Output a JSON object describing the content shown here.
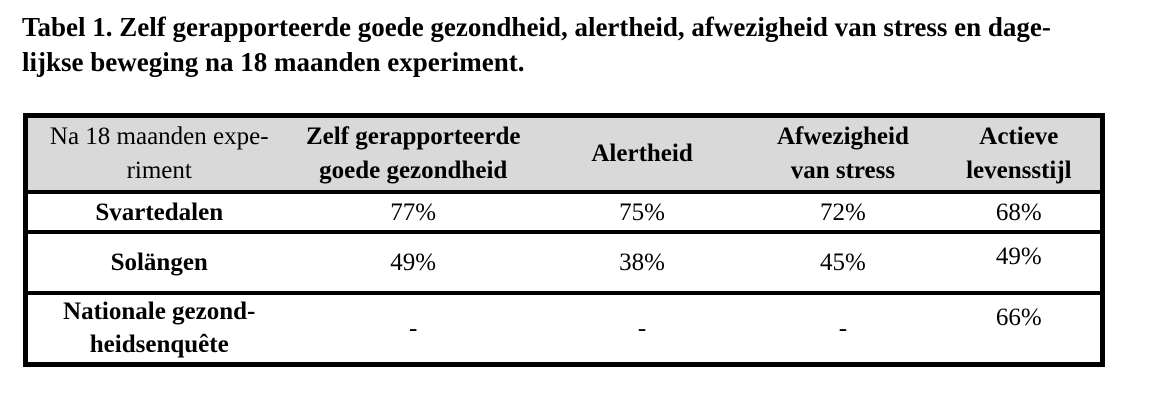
{
  "caption": {
    "text": "Tabel 1. Zelf gerapporteerde goede gezondheid, alertheid, afwezigheid van stress en dage-\nlijkse beweging na 18 maanden experiment."
  },
  "table": {
    "columns": [
      "Na 18 maanden expe-\nriment",
      "Zelf gerapporteerde\ngoede gezondheid",
      "Alertheid",
      "Afwezigheid\nvan stress",
      "Actieve\nlevensstijl"
    ],
    "rows": [
      {
        "label": "Svartedalen",
        "values": [
          "77%",
          "75%",
          "72%",
          "68%"
        ]
      },
      {
        "label": "Solängen",
        "values": [
          "49%",
          "38%",
          "45%",
          "49%"
        ]
      },
      {
        "label": "Nationale gezond-\nheidsenquête",
        "values": [
          "-",
          "-",
          "-",
          "66%"
        ]
      }
    ]
  },
  "colors": {
    "header_background": "#d9d9d9",
    "border": "#000000",
    "text": "#000000",
    "page_background": "#ffffff"
  },
  "chart_data": {
    "type": "table",
    "title": "Tabel 1. Zelf gerapporteerde goede gezondheid, alertheid, afwezigheid van stress en dagelijkse beweging na 18 maanden experiment.",
    "columns": [
      "Na 18 maanden experiment",
      "Zelf gerapporteerde goede gezondheid",
      "Alertheid",
      "Afwezigheid van stress",
      "Actieve levensstijl"
    ],
    "rows": [
      [
        "Svartedalen",
        "77%",
        "75%",
        "72%",
        "68%"
      ],
      [
        "Solängen",
        "49%",
        "38%",
        "45%",
        "49%"
      ],
      [
        "Nationale gezondheidsenquête",
        "-",
        "-",
        "-",
        "66%"
      ]
    ]
  }
}
